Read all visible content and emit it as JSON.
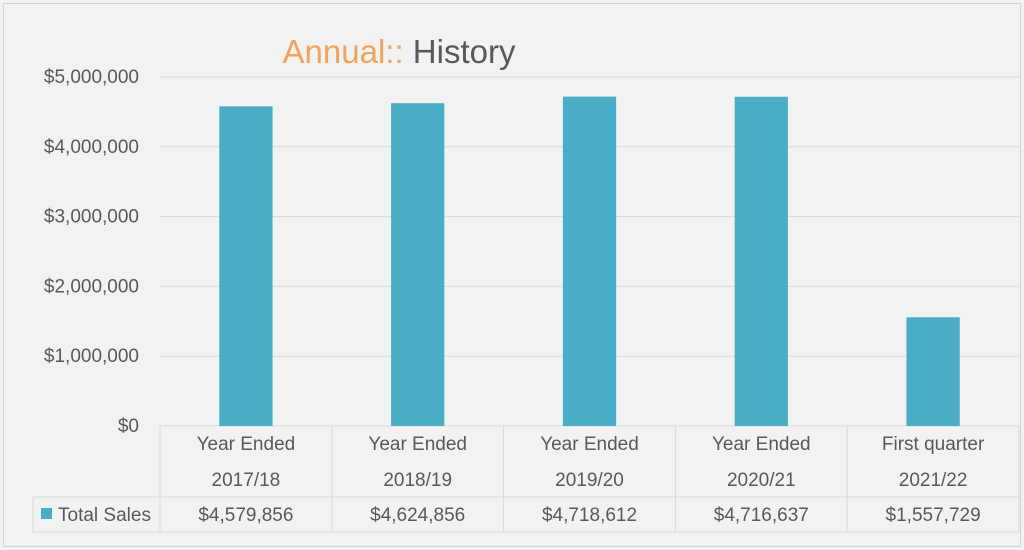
{
  "chart_data": {
    "type": "bar",
    "title": "Annual:: History",
    "title_parts": [
      "Annual::",
      " History"
    ],
    "categories": [
      [
        "Year Ended",
        "2017/18"
      ],
      [
        "Year Ended",
        "2018/19"
      ],
      [
        "Year Ended",
        "2019/20"
      ],
      [
        "Year Ended",
        "2020/21"
      ],
      [
        "First quarter",
        "2021/22"
      ]
    ],
    "series": [
      {
        "name": "Total Sales",
        "values": [
          4579856,
          4624856,
          4718612,
          4716637,
          1557729
        ],
        "labels": [
          "$4,579,856",
          "$4,624,856",
          "$4,718,612",
          "$4,716,637",
          "$1,557,729"
        ]
      }
    ],
    "ylim": [
      0,
      5000000
    ],
    "yticks": [
      0,
      1000000,
      2000000,
      3000000,
      4000000,
      5000000
    ],
    "ytick_labels": [
      "$0",
      "$1,000,000",
      "$2,000,000",
      "$3,000,000",
      "$4,000,000",
      "$5,000,000"
    ],
    "grid": true,
    "data_table": true,
    "colors": {
      "bar": "#4bacc6",
      "title_accent": "#f0a45c",
      "title_main": "#595959",
      "text": "#595959",
      "grid": "#d9d9d9"
    }
  }
}
